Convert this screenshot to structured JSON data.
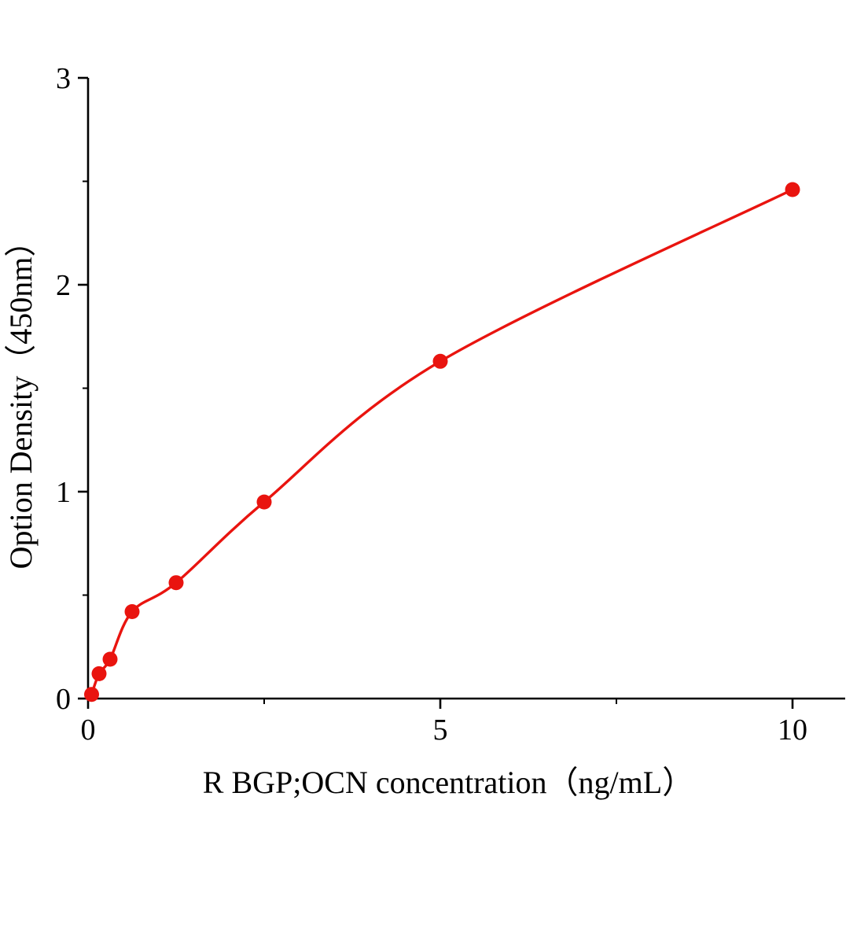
{
  "accent_color": "#e9140f",
  "axis_color": "#000000",
  "chart_data": {
    "type": "scatter",
    "title": "",
    "xlabel": "R BGP;OCN concentration（ng/mL）",
    "ylabel": "Option Density（450nm）",
    "x": [
      0.05,
      0.156,
      0.312,
      0.625,
      1.25,
      2.5,
      5,
      10
    ],
    "y": [
      0.02,
      0.12,
      0.19,
      0.42,
      0.56,
      0.95,
      1.63,
      2.46
    ],
    "x_ticks": [
      0,
      5,
      10
    ],
    "y_ticks": [
      0,
      1,
      2,
      3
    ],
    "x_minor_ticks": [
      2.5,
      7.5
    ],
    "y_minor_ticks": [
      0.5,
      1.5,
      2.5
    ],
    "xlim": [
      0,
      10.75
    ],
    "ylim": [
      0,
      3
    ],
    "grid": false,
    "legend": "none",
    "curve_fit": "smooth saturating curve through points",
    "marker": "filled-circle",
    "marker_color": "#e9140f",
    "line_color": "#e9140f"
  }
}
